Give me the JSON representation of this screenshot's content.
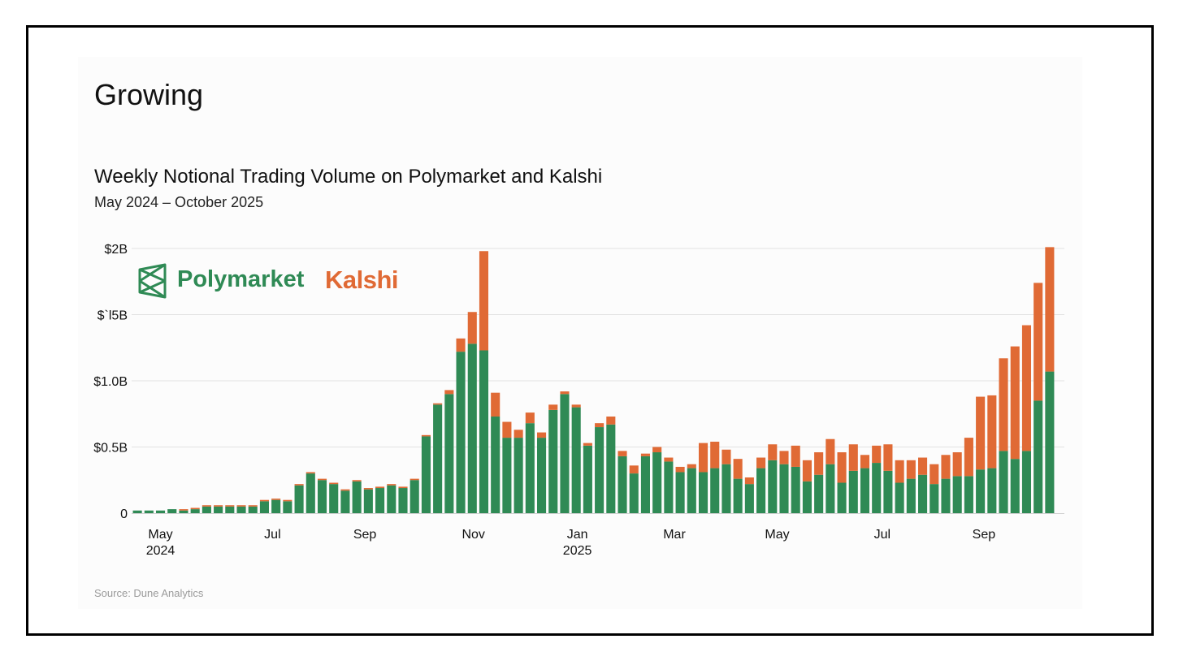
{
  "heading": "Growing",
  "legend": {
    "polymarket_label": "Polymarket",
    "kalshi_label": "Kalshi",
    "polymarket_icon": "polymarket-logo-icon"
  },
  "colors": {
    "polymarket": "#2f8a55",
    "kalshi": "#e06a35",
    "grid": "#e2e2e2"
  },
  "source": "Source: Dune Analytics",
  "chart_data": {
    "type": "bar",
    "stacked": true,
    "title": "Weekly Notional Trading Volume on Polymarket and Kalshi",
    "subtitle": "May 2024 – October 2025",
    "xlabel": "",
    "ylabel": "",
    "ylim": [
      0,
      2.0
    ],
    "grid": true,
    "legend_position": "top-left",
    "y_ticks": [
      {
        "value": 0,
        "label": "0"
      },
      {
        "value": 0.5,
        "label": "$0.5B"
      },
      {
        "value": 1.0,
        "label": "$1.0B"
      },
      {
        "value": 1.5,
        "label": "$`l5B"
      },
      {
        "value": 2.0,
        "label": "$2B"
      }
    ],
    "x_ticks": [
      {
        "index": 2.5,
        "label": "May",
        "sublabel": "2024"
      },
      {
        "index": 12.2,
        "label": "Jul",
        "sublabel": ""
      },
      {
        "index": 20.2,
        "label": "Sep",
        "sublabel": ""
      },
      {
        "index": 29.6,
        "label": "Nov",
        "sublabel": ""
      },
      {
        "index": 38.6,
        "label": "Jan",
        "sublabel": "2025"
      },
      {
        "index": 47.0,
        "label": "Mar",
        "sublabel": ""
      },
      {
        "index": 55.9,
        "label": "May",
        "sublabel": ""
      },
      {
        "index": 65.0,
        "label": "Jul",
        "sublabel": ""
      },
      {
        "index": 73.8,
        "label": "Sep",
        "sublabel": ""
      }
    ],
    "series": [
      {
        "name": "Polymarket",
        "color": "#2f8a55",
        "values": [
          0.02,
          0.02,
          0.02,
          0.03,
          0.02,
          0.03,
          0.05,
          0.05,
          0.05,
          0.05,
          0.05,
          0.09,
          0.1,
          0.09,
          0.21,
          0.3,
          0.25,
          0.22,
          0.17,
          0.24,
          0.18,
          0.19,
          0.21,
          0.19,
          0.25,
          0.58,
          0.82,
          0.9,
          1.22,
          1.28,
          1.23,
          0.73,
          0.57,
          0.57,
          0.68,
          0.57,
          0.78,
          0.9,
          0.8,
          0.51,
          0.65,
          0.67,
          0.43,
          0.3,
          0.43,
          0.46,
          0.39,
          0.31,
          0.34,
          0.31,
          0.34,
          0.37,
          0.26,
          0.22,
          0.34,
          0.4,
          0.37,
          0.35,
          0.24,
          0.29,
          0.37,
          0.23,
          0.32,
          0.34,
          0.38,
          0.32,
          0.23,
          0.26,
          0.29,
          0.22,
          0.26,
          0.28,
          0.28,
          0.33,
          0.34,
          0.47,
          0.41,
          0.47,
          0.85,
          1.07
        ]
      },
      {
        "name": "Kalshi",
        "color": "#e06a35",
        "values": [
          0.0,
          0.0,
          0.0,
          0.0,
          0.01,
          0.01,
          0.01,
          0.01,
          0.01,
          0.01,
          0.01,
          0.01,
          0.01,
          0.01,
          0.01,
          0.01,
          0.01,
          0.01,
          0.01,
          0.01,
          0.01,
          0.01,
          0.01,
          0.01,
          0.01,
          0.01,
          0.01,
          0.03,
          0.1,
          0.24,
          0.75,
          0.18,
          0.12,
          0.06,
          0.08,
          0.04,
          0.04,
          0.02,
          0.02,
          0.02,
          0.03,
          0.06,
          0.04,
          0.06,
          0.02,
          0.04,
          0.03,
          0.04,
          0.03,
          0.22,
          0.2,
          0.11,
          0.15,
          0.05,
          0.08,
          0.12,
          0.1,
          0.16,
          0.16,
          0.17,
          0.19,
          0.23,
          0.2,
          0.1,
          0.13,
          0.2,
          0.17,
          0.14,
          0.13,
          0.15,
          0.18,
          0.18,
          0.29,
          0.55,
          0.55,
          0.7,
          0.85,
          0.95,
          0.89,
          0.94
        ]
      }
    ]
  }
}
